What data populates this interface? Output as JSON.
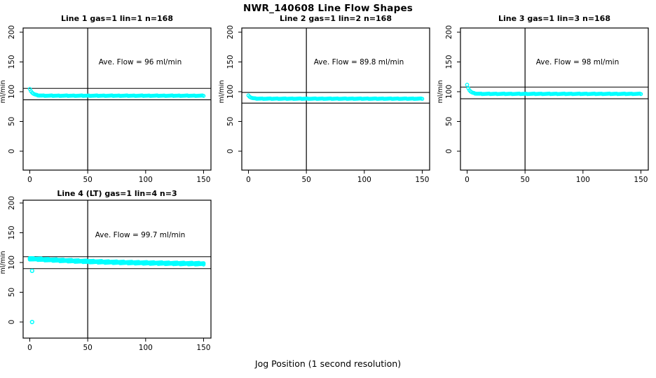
{
  "page": {
    "title": "NWR_140608  Line Flow Shapes",
    "xlabel": "Jog Position (1 second resolution)",
    "background": "#FFFFFF"
  },
  "axes": {
    "x_ticks": [
      0,
      50,
      100,
      150
    ],
    "y_ticks": [
      0,
      50,
      100,
      150,
      200
    ],
    "ylabel": "ml/min",
    "x_range": [
      0,
      150
    ],
    "y_range": [
      0,
      200
    ],
    "grid": false,
    "box": true
  },
  "style": {
    "point_color": "#00FFFF",
    "axis_color": "#000000",
    "marker": "open-circle"
  },
  "chart_data": [
    {
      "type": "scatter",
      "panel": 1,
      "title": "Line 1 gas=1 lin=1 n=168",
      "n": 168,
      "ave_flow": 96,
      "ave_label": "Ave. Flow =  96  ml/min",
      "vline_x": 50,
      "ref_lines": [
        105.6,
        86.4
      ],
      "profile": {
        "x_start": 0,
        "x_end": 150,
        "start_y": 105,
        "flat_y": 93.3,
        "tau": 2.5,
        "noise": 0.8,
        "overlays": 1
      },
      "extra_points": []
    },
    {
      "type": "scatter",
      "panel": 2,
      "title": "Line 2 gas=1 lin=2 n=168",
      "n": 168,
      "ave_flow": 89.8,
      "ave_label": "Ave. Flow =  89.8  ml/min",
      "vline_x": 50,
      "ref_lines": [
        98.8,
        80.8
      ],
      "profile": {
        "x_start": 0,
        "x_end": 150,
        "start_y": 94,
        "flat_y": 88.3,
        "tau": 2.0,
        "noise": 0.7,
        "overlays": 1
      },
      "extra_points": []
    },
    {
      "type": "scatter",
      "panel": 3,
      "title": "Line 3 gas=1 lin=3 n=168",
      "n": 168,
      "ave_flow": 98,
      "ave_label": "Ave. Flow =  98  ml/min",
      "vline_x": 50,
      "ref_lines": [
        107.8,
        88.2
      ],
      "profile": {
        "x_start": 0,
        "x_end": 150,
        "start_y": 112,
        "flat_y": 96.4,
        "tau": 2.2,
        "noise": 0.8,
        "overlays": 1
      },
      "extra_points": []
    },
    {
      "type": "scatter",
      "panel": 4,
      "title": "Line 4 (LT) gas=1 lin=4 n=3",
      "n": 3,
      "ave_flow": 99.7,
      "ave_label": "Ave. Flow =  99.7  ml/min",
      "vline_x": 50,
      "ref_lines": [
        109.7,
        89.7
      ],
      "profile": {
        "x_start": 0,
        "x_end": 150,
        "start_y": 106.5,
        "flat_y": 96.5,
        "tau": 80,
        "noise": 1.2,
        "overlays": 3
      },
      "extra_points": [
        [
          2,
          0
        ],
        [
          2,
          86
        ]
      ]
    }
  ]
}
